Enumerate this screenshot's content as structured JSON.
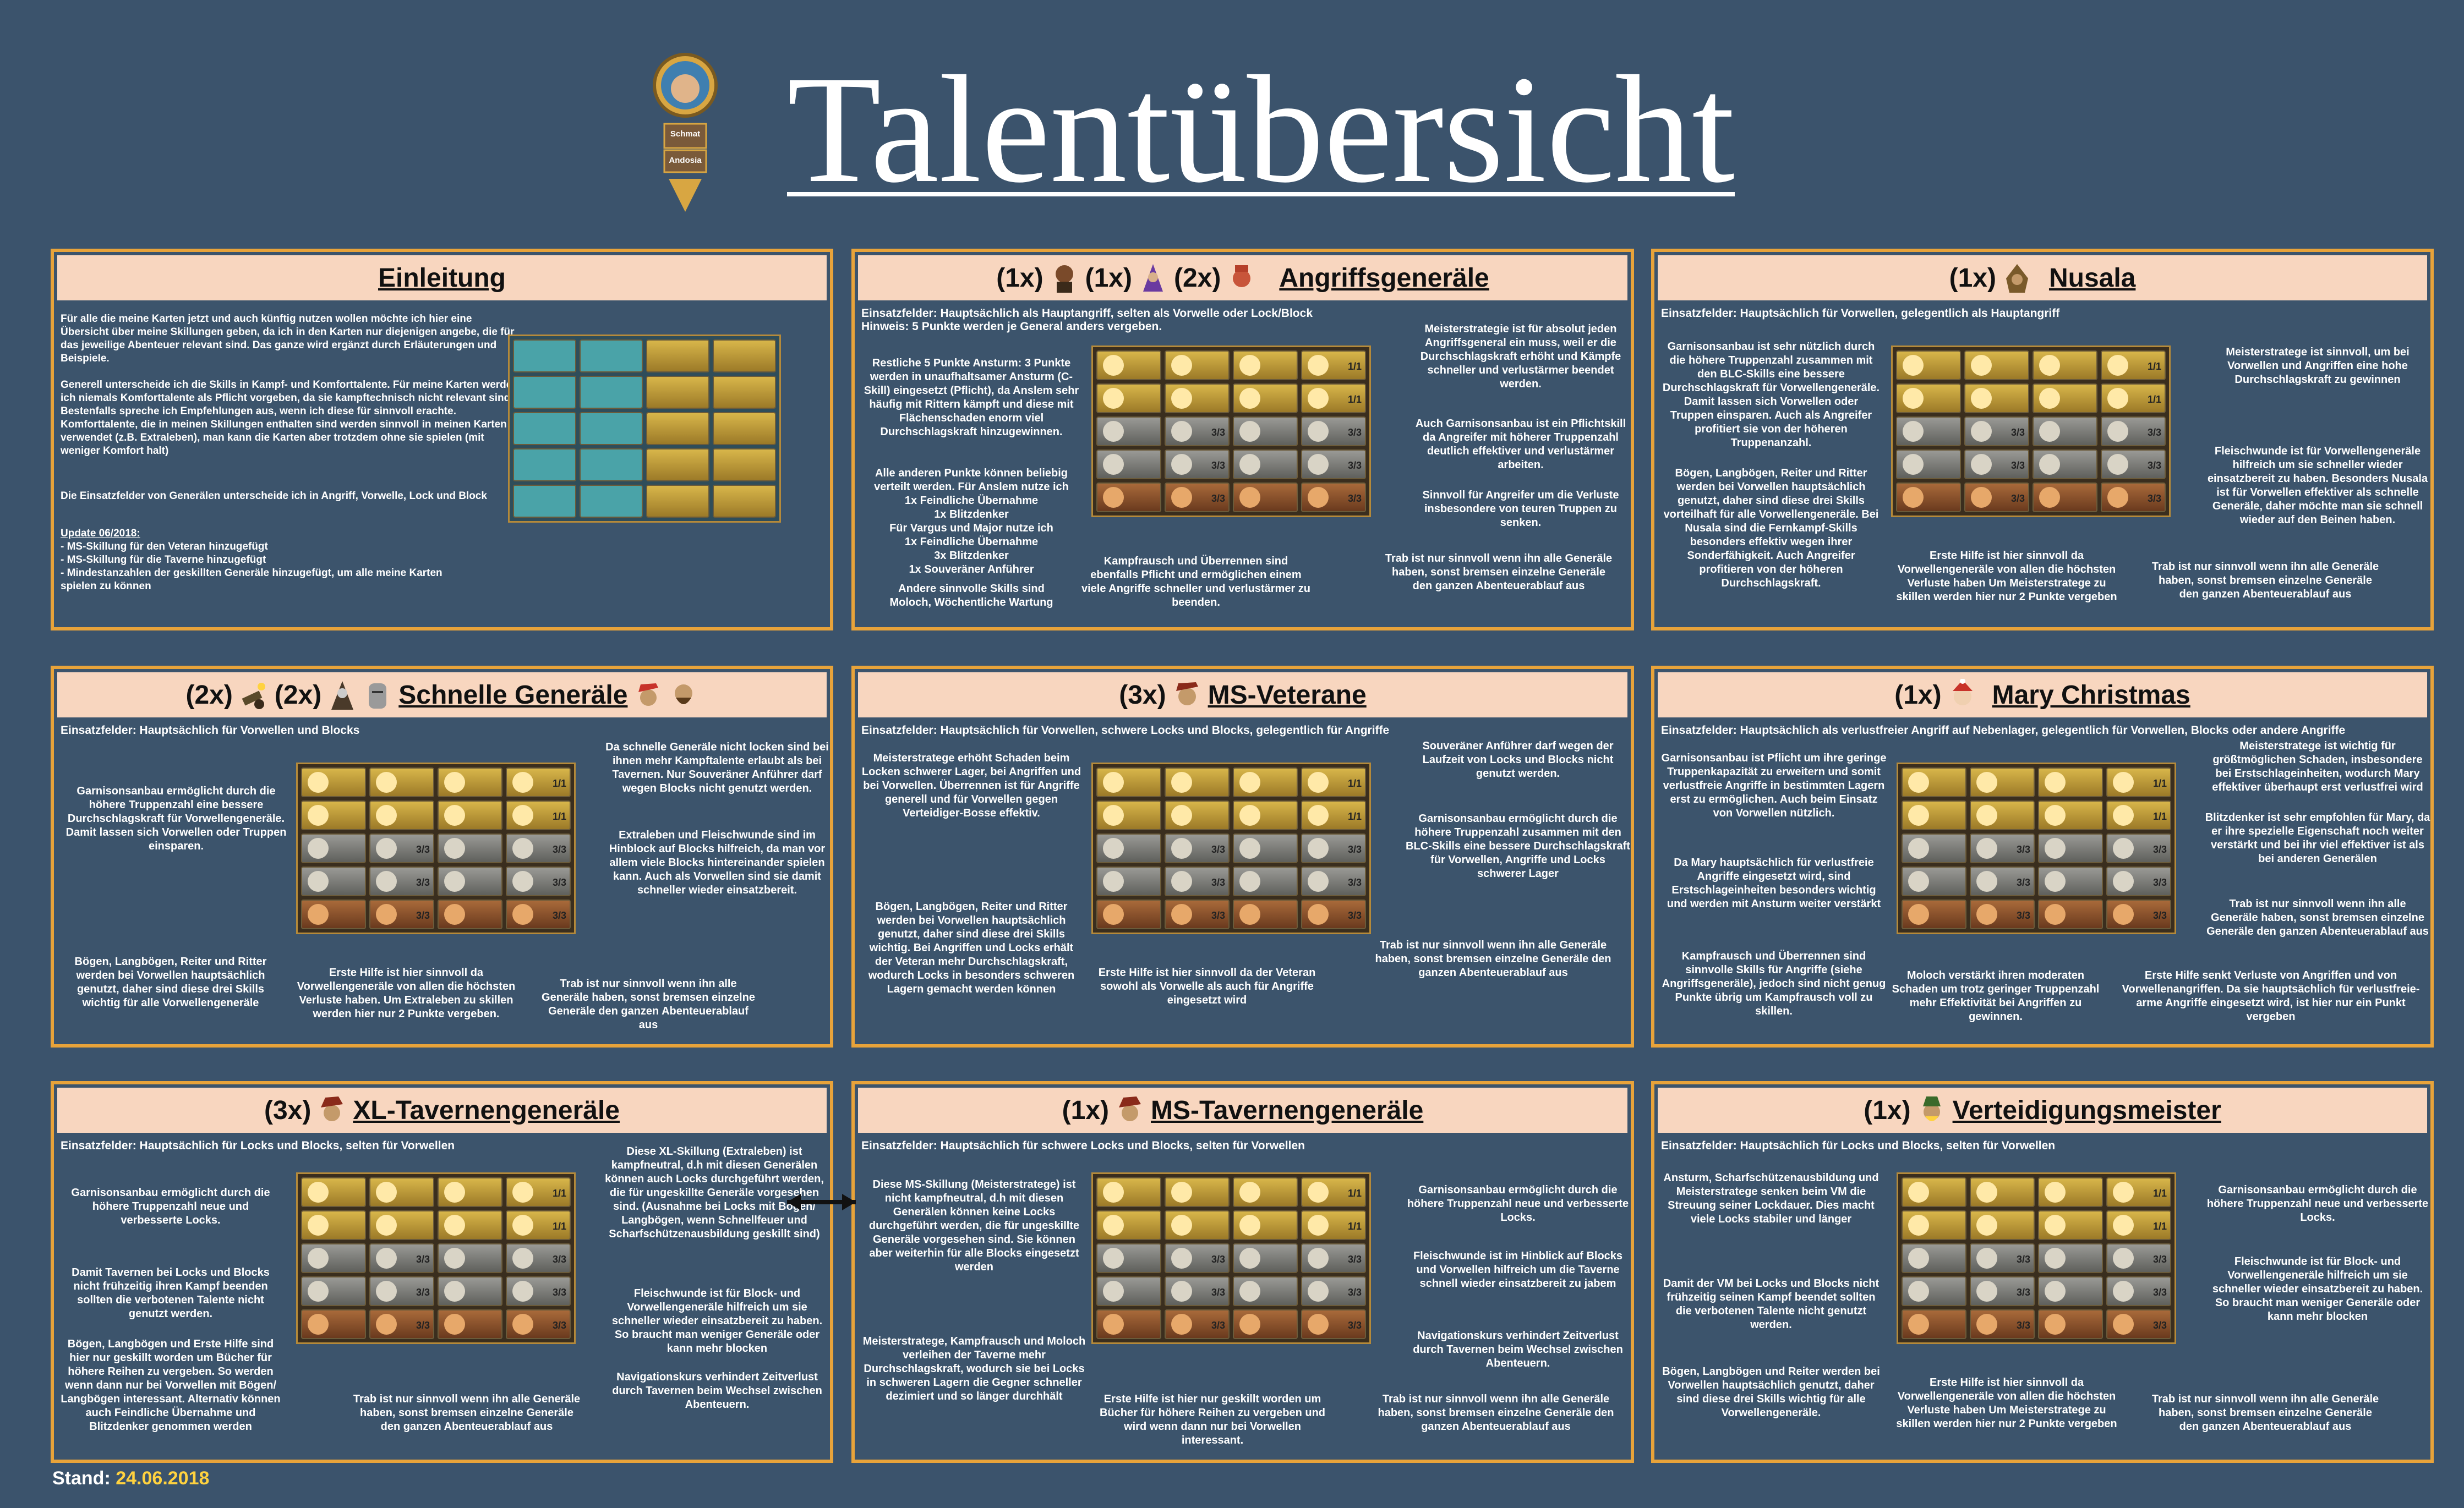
{
  "title": "Talentübersicht",
  "portrait": {
    "name": "Schmat",
    "server": "Andosia"
  },
  "footer": {
    "label": "Stand:",
    "date": "24.06.2018"
  },
  "colors": {
    "bg": "#3b536c",
    "frame": "#e8a33a",
    "header": "#f8d6bf",
    "blue": "#69b8ff",
    "orange": "#ff9a2e",
    "yellow": "#ffd23f"
  },
  "panels": {
    "einleitung": {
      "heading": "Einleitung",
      "p1": "Für alle die meine Karten jetzt und auch künftig nutzen wollen möchte ich hier eine Übersicht über meine Skillungen geben, da ich in den Karten nur diejenigen angebe, die für das jeweilige Abenteuer relevant sind. Das ganze wird ergänzt durch Erläuterungen und Beispiele.",
      "p2": "Generell unterscheide ich die Skills in Kampf- und Komforttalente. Für meine Karten werde ich niemals Komforttalente als Pflicht vorgeben, da sie kampftechnisch nicht relevant sind. Bestenfalls spreche ich Empfehlungen aus, wenn ich diese für sinnvoll erachte. Komforttalente, die in meinen Skillungen enthalten sind werden sinnvoll in meinen Karten verwendet (z.B. Extraleben), man kann die Karten aber trotzdem ohne sie spielen (mit weniger Komfort halt)",
      "p3": "Die Einsatzfelder von Generälen unterscheide ich in Angriff, Vorwelle, Lock und Block",
      "update_title": "Update 06/2018:",
      "update_1": "- MS-Skillung für den Veteran hinzugefügt",
      "update_2": "- MS-Skillung für die Taverne hinzugefügt",
      "update_3": "- Mindestanzahlen der geskillten Generäle hinzugefügt, um alle meine Karten spielen zu können"
    },
    "angriff": {
      "count1": "(1x)",
      "count2": "(1x)",
      "count3": "(2x)",
      "heading": "Angriffsgeneräle",
      "sub": "Einsatzfelder: Hauptsächlich als Hauptangriff, selten als Vorwelle oder Lock/Block",
      "sub2": "Hinweis: 5 Punkte werden je General anders vergeben.",
      "n1": "Restliche 5 Punkte\nAnsturm: 3 Punkte werden in unaufhaltsamer Ansturm (C-Skill) eingesetzt (Pflicht), da Anslem sehr häufig mit Rittern kämpft und diese mit Flächenschaden enorm viel Durchschlagskraft hinzugewinnen.",
      "n2": "Alle anderen Punkte können beliebig verteilt werden. Für Anslem nutze ich\n1x Feindliche Übernahme\n1x Blitzdenker\nFür Vargus und Major nutze ich\n1x Feindliche Übernahme\n3x Blitzdenker\n1x Souveräner Anführer",
      "n3": "Andere sinnvolle Skills sind\nMoloch, Wöchentliche Wartung",
      "n4": "Meisterstrategie ist für absolut jeden Angriffsgeneral ein muss, weil er die Durchschlagskraft erhöht und Kämpfe schneller und verlustärmer beendet werden.",
      "n5": "Auch Garnisonsanbau ist ein Pflichtskill da Angreifer mit höherer Truppenzahl deutlich effektiver und verlustärmer arbeiten.",
      "n6": "Sinnvoll für Angreifer um die Verluste insbesondere von teuren Truppen zu senken.",
      "n7": "Kampfrausch und Überrennen sind ebenfalls Pflicht und ermöglichen einem viele Angriffe schneller und verlustärmer zu beenden.",
      "n8": "Trab ist nur sinnvoll wenn ihn alle Generäle haben, sonst bremsen einzelne Generäle den ganzen Abenteuerablauf aus"
    },
    "nusala": {
      "count": "(1x)",
      "heading": "Nusala",
      "sub": "Einsatzfelder: Hauptsächlich für Vorwellen, gelegentlich als Hauptangriff",
      "n1": "Garnisonsanbau ist sehr nützlich durch die höhere Truppenzahl zusammen mit den BLC-Skills eine bessere Durchschlagskraft für Vorwellengeneräle. Damit lassen sich Vorwellen oder Truppen einsparen. Auch als Angreifer profitiert sie von der höheren Truppenanzahl.",
      "n2": "Bögen, Langbögen, Reiter und Ritter werden bei Vorwellen hauptsächlich genutzt, daher sind diese drei Skills vorteilhaft für alle Vorwellengeneräle. Bei Nusala sind die Fernkampf-Skills besonders effektiv wegen ihrer Sonderfähigkeit. Auch Angreifer profitieren von der höheren Durchschlagskraft.",
      "n3": "Meisterstratege ist sinnvoll, um bei Vorwellen und Angriffen eine hohe Durchschlagskraft zu gewinnen",
      "n4": "Fleischwunde ist für Vorwellengeneräle hilfreich um sie schneller wieder einsatzbereit zu haben. Besonders Nusala ist für Vorwellen effektiver als schnelle Generäle, daher möchte man sie schnell wieder auf den Beinen haben.",
      "n5": "Erste Hilfe ist hier sinnvoll da Vorwellengeneräle von allen die höchsten Verluste haben Um Meisterstratege zu skillen werden hier nur 2 Punkte vergeben",
      "n6": "Trab ist nur sinnvoll wenn ihn alle Generäle haben, sonst bremsen einzelne Generäle den ganzen Abenteuerablauf aus"
    },
    "schnell": {
      "count1": "(2x)",
      "count2": "(2x)",
      "heading": "Schnelle Generäle",
      "sub": "Einsatzfelder: Hauptsächlich für Vorwellen und Blocks",
      "n1": "Garnisonsanbau ermöglicht durch die höhere Truppenzahl eine bessere Durchschlagskraft für Vorwellengeneräle. Damit lassen sich Vorwellen oder Truppen einsparen.",
      "n2": "Da schnelle Generäle nicht locken sind bei ihnen mehr Kampftalente erlaubt als bei Tavernen. Nur Souveräner Anführer darf wegen Blocks nicht genutzt werden.",
      "n3": "Extraleben und Fleischwunde sind im Hinblock auf Blocks hilfreich, da man vor allem viele Blocks hintereinander spielen kann. Auch als Vorwellen sind sie damit schneller wieder einsatzbereit.",
      "n4": "Bögen, Langbögen, Reiter und Ritter werden bei Vorwellen hauptsächlich genutzt, daher sind diese drei Skills wichtig für alle Vorwellengeneräle",
      "n5": "Erste Hilfe ist hier sinnvoll da Vorwellengeneräle von allen die höchsten Verluste haben. Um Extraleben zu skillen werden hier nur 2 Punkte vergeben.",
      "n6": "Trab ist nur sinnvoll wenn ihn alle Generäle haben, sonst bremsen einzelne Generäle den ganzen Abenteuerablauf aus"
    },
    "veteran": {
      "count": "(3x)",
      "heading": "MS-Veterane",
      "sub": "Einsatzfelder: Hauptsächlich für Vorwellen, schwere Locks und Blocks, gelegentlich für Angriffe",
      "n1": "Meisterstratege erhöht Schaden beim Locken schwerer Lager, bei Angriffen und bei Vorwellen. Überrennen ist für Angriffe generell und für Vorwellen gegen Verteidiger-Bosse effektiv.",
      "n2": "Bögen, Langbögen, Reiter und Ritter werden bei Vorwellen hauptsächlich genutzt, daher sind diese drei Skills wichtig. Bei Angriffen und Locks erhält der Veteran mehr Durchschlagskraft, wodurch Locks in besonders schweren Lagern gemacht werden können",
      "n3": "Souveräner Anführer darf wegen der Laufzeit von Locks und Blocks nicht genutzt werden.",
      "n4": "Garnisonsanbau ermöglicht durch die höhere Truppenzahl zusammen mit den BLC-Skills eine bessere Durchschlagskraft für Vorwellen, Angriffe und Locks schwerer Lager",
      "n5": "Erste Hilfe ist hier sinnvoll da der Veteran sowohl als Vorwelle als auch für Angriffe eingesetzt wird",
      "n6": "Trab ist nur sinnvoll wenn ihn alle Generäle haben, sonst bremsen einzelne Generäle den ganzen Abenteuerablauf aus"
    },
    "mary": {
      "count": "(1x)",
      "heading": "Mary Christmas",
      "sub": "Einsatzfelder: Hauptsächlich als verlustfreier Angriff auf Nebenlager, gelegentlich für Vorwellen, Blocks oder andere Angriffe",
      "n1": "Garnisonsanbau ist Pflicht um ihre geringe Truppenkapazität zu erweitern und somit verlustfreie Angriffe in bestimmten Lagern erst zu ermöglichen. Auch beim Einsatz von Vorwellen nützlich.",
      "n2": "Da Mary hauptsächlich für verlustfreie Angriffe eingesetzt wird, sind Erstschlageinheiten besonders wichtig und werden mit Ansturm weiter verstärkt",
      "n3": "Kampfrausch und Überrennen sind sinnvolle Skills für Angriffe (siehe Angriffsgeneräle), jedoch sind nicht genug Punkte übrig um Kampfrausch voll zu skillen.",
      "n4": "Meisterstratege ist wichtig für größtmöglichen Schaden, insbesondere bei Erstschlageinheiten, wodurch Mary effektiver überhaupt erst verlustfrei wird",
      "n5": "Blitzdenker ist sehr empfohlen für Mary, da er ihre spezielle Eigenschaft noch weiter verstärkt und bei ihr viel effektiver ist als bei anderen Generälen",
      "n6": "Trab ist nur sinnvoll wenn ihn alle Generäle haben, sonst bremsen einzelne Generäle den ganzen Abenteuerablauf aus",
      "n7": "Moloch verstärkt ihren moderaten Schaden um trotz geringer Truppenzahl mehr Effektivität bei Angriffen zu gewinnen.",
      "n8": "Erste Hilfe senkt Verluste von Angriffen und von Vorwellenangriffen. Da sie hauptsächlich für verlustfreie-arme Angriffe eingesetzt wird, ist hier nur ein Punkt vergeben"
    },
    "xl": {
      "count": "(3x)",
      "heading": "XL-Tavernengeneräle",
      "sub": "Einsatzfelder: Hauptsächlich für Locks und Blocks, selten für Vorwellen",
      "n1": "Garnisonsanbau ermöglicht durch die höhere Truppenzahl neue und verbesserte Locks.",
      "n2": "Damit Tavernen bei Locks und Blocks nicht frühzeitig ihren Kampf beenden sollten die verbotenen Talente nicht genutzt werden.",
      "n3": "Bögen, Langbögen und Erste Hilfe sind hier nur geskillt worden um Bücher für höhere Reihen zu vergeben. So werden wenn dann nur bei Vorwellen mit Bögen/ Langbögen interessant. Alternativ können auch Feindliche Übernahme und Blitzdenker genommen werden",
      "n4": "Diese XL-Skillung (Extraleben) ist kampfneutral, d.h mit diesen Generälen können auch Locks durchgeführt werden, die für ungeskillte Generäle vorgesehen sind. (Ausnahme bei Locks mit Bögen/ Langbögen, wenn Schnellfeuer und Scharfschützenausbildung geskillt sind)",
      "n5": "Fleischwunde ist für Block- und Vorwellengeneräle hilfreich um sie schneller wieder einsatzbereit zu haben. So braucht man weniger Generäle oder kann mehr blocken",
      "n6": "Navigationskurs verhindert Zeitverlust durch Tavernen beim Wechsel zwischen Abenteuern.",
      "n7": "Trab ist nur sinnvoll wenn ihn alle Generäle haben, sonst bremsen einzelne Generäle den ganzen Abenteuerablauf aus"
    },
    "mstav": {
      "count": "(1x)",
      "heading": "MS-Tavernengeneräle",
      "sub": "Einsatzfelder: Hauptsächlich für schwere Locks und Blocks, selten für Vorwellen",
      "n1": "Diese MS-Skillung (Meisterstratege) ist nicht kampfneutral, d.h mit diesen Generälen können keine Locks durchgeführt werden, die für ungeskillte Generäle vorgesehen sind. Sie können aber weiterhin für alle Blocks eingesetzt werden",
      "n2": "Meisterstratege, Kampfrausch und Moloch verleihen der Taverne mehr Durchschlagskraft, wodurch sie bei Locks in schweren Lagern die Gegner schneller dezimiert und so länger durchhält",
      "n3": "Erste Hilfe ist hier nur geskillt worden um Bücher für höhere Reihen zu vergeben und wird wenn dann nur bei Vorwellen interessant.",
      "n4": "Garnisonsanbau ermöglicht durch die höhere Truppenzahl neue und verbesserte Locks.",
      "n5": "Fleischwunde ist im Hinblick auf Blocks und Vorwellen hilfreich um die Taverne schnell wieder einsatzbereit zu jabem",
      "n6": "Navigationskurs verhindert Zeitverlust durch Tavernen beim Wechsel zwischen Abenteuern.",
      "n7": "Trab ist nur sinnvoll wenn ihn alle Generäle haben, sonst bremsen einzelne Generäle den ganzen Abenteuerablauf aus"
    },
    "verteidigung": {
      "count": "(1x)",
      "heading": "Verteidigungsmeister",
      "sub": "Einsatzfelder: Hauptsächlich für Locks und Blocks, selten für Vorwellen",
      "n1": "Ansturm, Scharfschützenausbildung und Meisterstratege senken beim VM die Streuung seiner Lockdauer. Dies macht viele Locks stabiler und länger",
      "n2": "Damit der VM bei Locks und Blocks nicht frühzeitig seinen Kampf beendet sollten die verbotenen Talente nicht genutzt werden.",
      "n3": "Bögen, Langbögen und Reiter werden bei Vorwellen hauptsächlich genutzt, daher sind diese drei Skills wichtig für alle Vorwellengeneräle.",
      "n4": "Garnisonsanbau ermöglicht durch die höhere Truppenzahl neue und verbesserte Locks.",
      "n5": "Fleischwunde ist für Block- und Vorwellengeneräle hilfreich um sie schneller wieder einsatzbereit zu haben. So braucht man weniger Generäle oder kann mehr blocken",
      "n6": "Erste Hilfe ist hier sinnvoll da Vorwellengeneräle von allen die höchsten Verluste haben Um Meisterstratege zu skillen werden hier nur 2 Punkte vergeben",
      "n7": "Trab ist nur sinnvoll wenn ihn alle Generäle haben, sonst bremsen einzelne Generäle den ganzen Abenteuerablauf aus"
    }
  },
  "grid_labels": {
    "full3": "3/3",
    "one": "1/1",
    "two3": "2/3"
  }
}
